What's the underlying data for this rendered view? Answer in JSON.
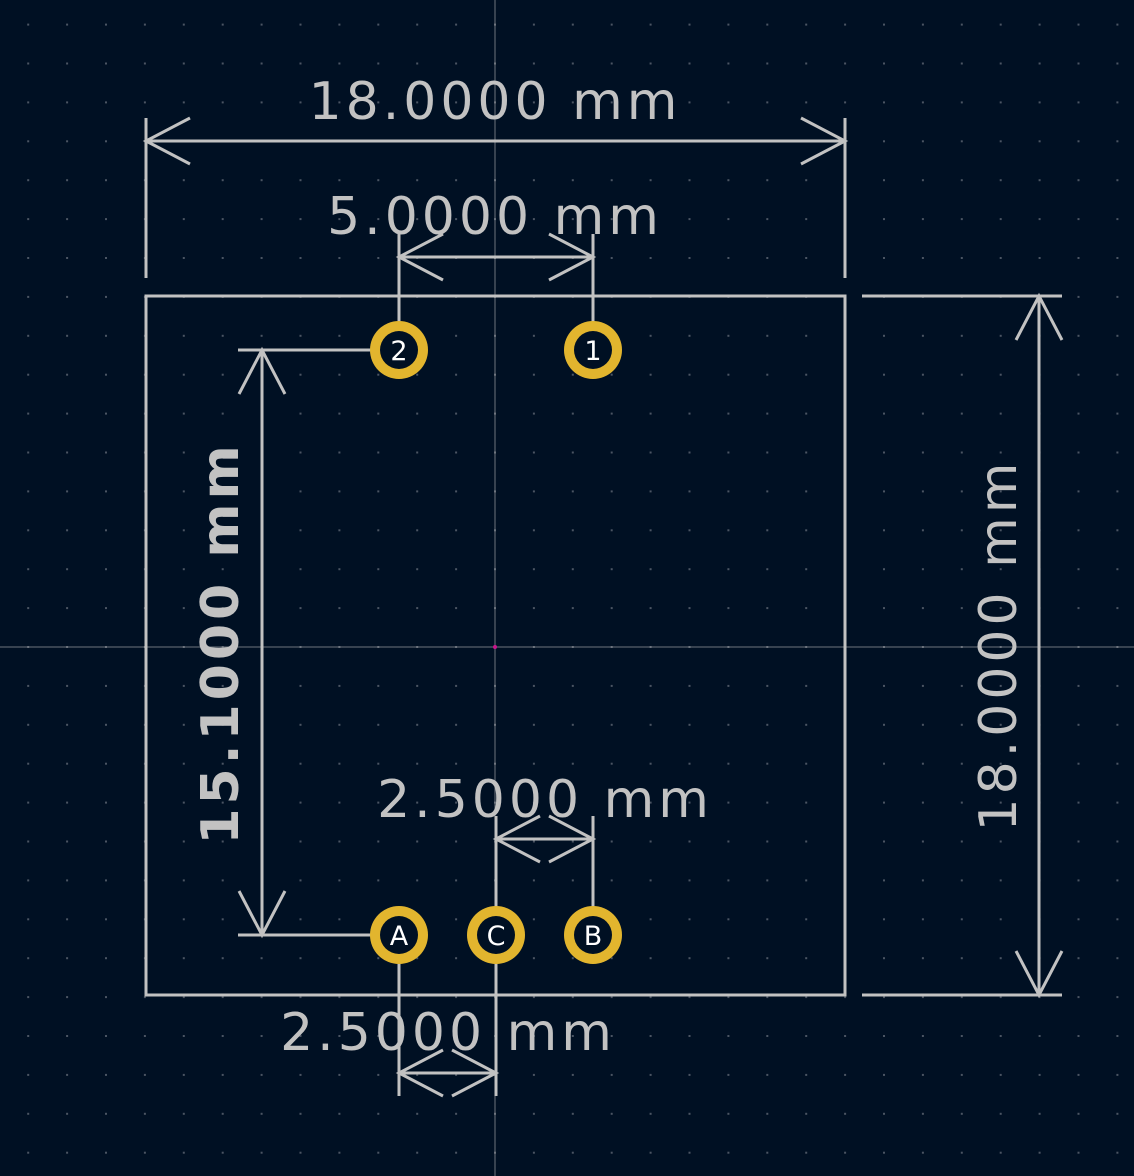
{
  "colors": {
    "background": "#001023",
    "grid_dot": "#4b5563",
    "outline": "#c2c2c2",
    "pad_copper": "#e2b52e",
    "pad_hole": "#001023",
    "pad_text": "#ffffff",
    "origin": "#c8158c"
  },
  "dimensions": {
    "top_width": "18.0000 mm",
    "pad_pitch_top": "5.0000 mm",
    "pad_pitch_bottom_right": "2.5000 mm",
    "pad_pitch_bottom_left": "2.5000 mm",
    "pad_vertical_span": "15.1000 mm",
    "right_height": "18.0000 mm"
  },
  "pads": {
    "pad_2": "2",
    "pad_1": "1",
    "pad_a": "A",
    "pad_c": "C",
    "pad_b": "B"
  }
}
